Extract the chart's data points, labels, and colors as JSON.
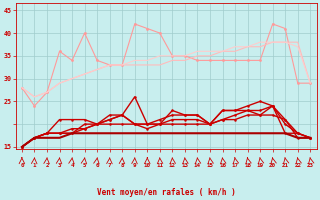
{
  "xlabel": "Vent moyen/en rafales ( km/h )",
  "bg_color": "#c8eeee",
  "grid_color": "#a0cccc",
  "x": [
    0,
    1,
    2,
    3,
    4,
    5,
    6,
    7,
    8,
    9,
    10,
    11,
    12,
    13,
    14,
    15,
    16,
    17,
    18,
    19,
    20,
    21,
    22,
    23
  ],
  "series": [
    {
      "y": [
        28,
        24,
        27,
        36,
        34,
        40,
        34,
        33,
        33,
        42,
        41,
        40,
        35,
        35,
        34,
        34,
        34,
        34,
        34,
        34,
        42,
        41,
        29,
        29
      ],
      "color": "#ff9999",
      "lw": 0.8,
      "marker": "o",
      "ms": 2.0
    },
    {
      "y": [
        28,
        26,
        27,
        29,
        30,
        31,
        32,
        33,
        33,
        33,
        33,
        33,
        34,
        34,
        35,
        35,
        36,
        36,
        37,
        37,
        38,
        38,
        38,
        29
      ],
      "color": "#ffbbbb",
      "lw": 0.8,
      "marker": null,
      "ms": 0
    },
    {
      "y": [
        28,
        26,
        27,
        29,
        30,
        31,
        32,
        33,
        33,
        34,
        34,
        35,
        35,
        35,
        36,
        36,
        36,
        37,
        37,
        38,
        38,
        38,
        37,
        29
      ],
      "color": "#ffcccc",
      "lw": 0.8,
      "marker": null,
      "ms": 0
    },
    {
      "y": [
        15,
        17,
        18,
        18,
        19,
        19,
        20,
        21,
        22,
        20,
        20,
        20,
        20,
        20,
        20,
        20,
        21,
        21,
        22,
        22,
        22,
        21,
        17,
        17
      ],
      "color": "#cc0000",
      "lw": 1.0,
      "marker": "o",
      "ms": 1.8
    },
    {
      "y": [
        15,
        17,
        18,
        18,
        18,
        19,
        20,
        20,
        20,
        20,
        19,
        20,
        21,
        21,
        21,
        20,
        21,
        22,
        23,
        22,
        24,
        20,
        18,
        17
      ],
      "color": "#cc0000",
      "lw": 1.0,
      "marker": "o",
      "ms": 1.8
    },
    {
      "y": [
        15,
        17,
        18,
        18,
        18,
        20,
        20,
        21,
        22,
        26,
        20,
        20,
        23,
        22,
        22,
        20,
        23,
        23,
        23,
        23,
        24,
        21,
        18,
        17
      ],
      "color": "#cc0000",
      "lw": 1.0,
      "marker": "o",
      "ms": 1.8
    },
    {
      "y": [
        15,
        17,
        18,
        21,
        21,
        21,
        20,
        22,
        22,
        20,
        20,
        21,
        22,
        22,
        22,
        20,
        23,
        23,
        24,
        25,
        24,
        18,
        18,
        17
      ],
      "color": "#cc0000",
      "lw": 1.0,
      "marker": "o",
      "ms": 1.8
    },
    {
      "y": [
        15,
        17,
        17,
        17,
        18,
        18,
        18,
        18,
        18,
        18,
        18,
        18,
        18,
        18,
        18,
        18,
        18,
        18,
        18,
        18,
        18,
        18,
        17,
        17
      ],
      "color": "#aa0000",
      "lw": 1.5,
      "marker": null,
      "ms": 0
    }
  ],
  "ylim": [
    14.5,
    46.5
  ],
  "yticks": [
    15,
    20,
    25,
    30,
    35,
    40,
    45
  ],
  "ytick_labels": [
    "15",
    "",
    "25",
    "30",
    "35",
    "40",
    "45"
  ],
  "xlim": [
    -0.5,
    23.5
  ],
  "xticks": [
    0,
    1,
    2,
    3,
    4,
    5,
    6,
    7,
    8,
    9,
    10,
    11,
    12,
    13,
    14,
    15,
    16,
    17,
    18,
    19,
    20,
    21,
    22,
    23
  ],
  "tick_color": "#cc0000",
  "spine_color": "#cc0000",
  "arrow_angles": [
    0,
    5,
    8,
    10,
    12,
    14,
    15,
    5,
    5,
    5,
    0,
    -5,
    -8,
    -10,
    -12,
    -14,
    -15,
    -18,
    -20,
    -20,
    -20,
    -20,
    -20,
    -20
  ]
}
